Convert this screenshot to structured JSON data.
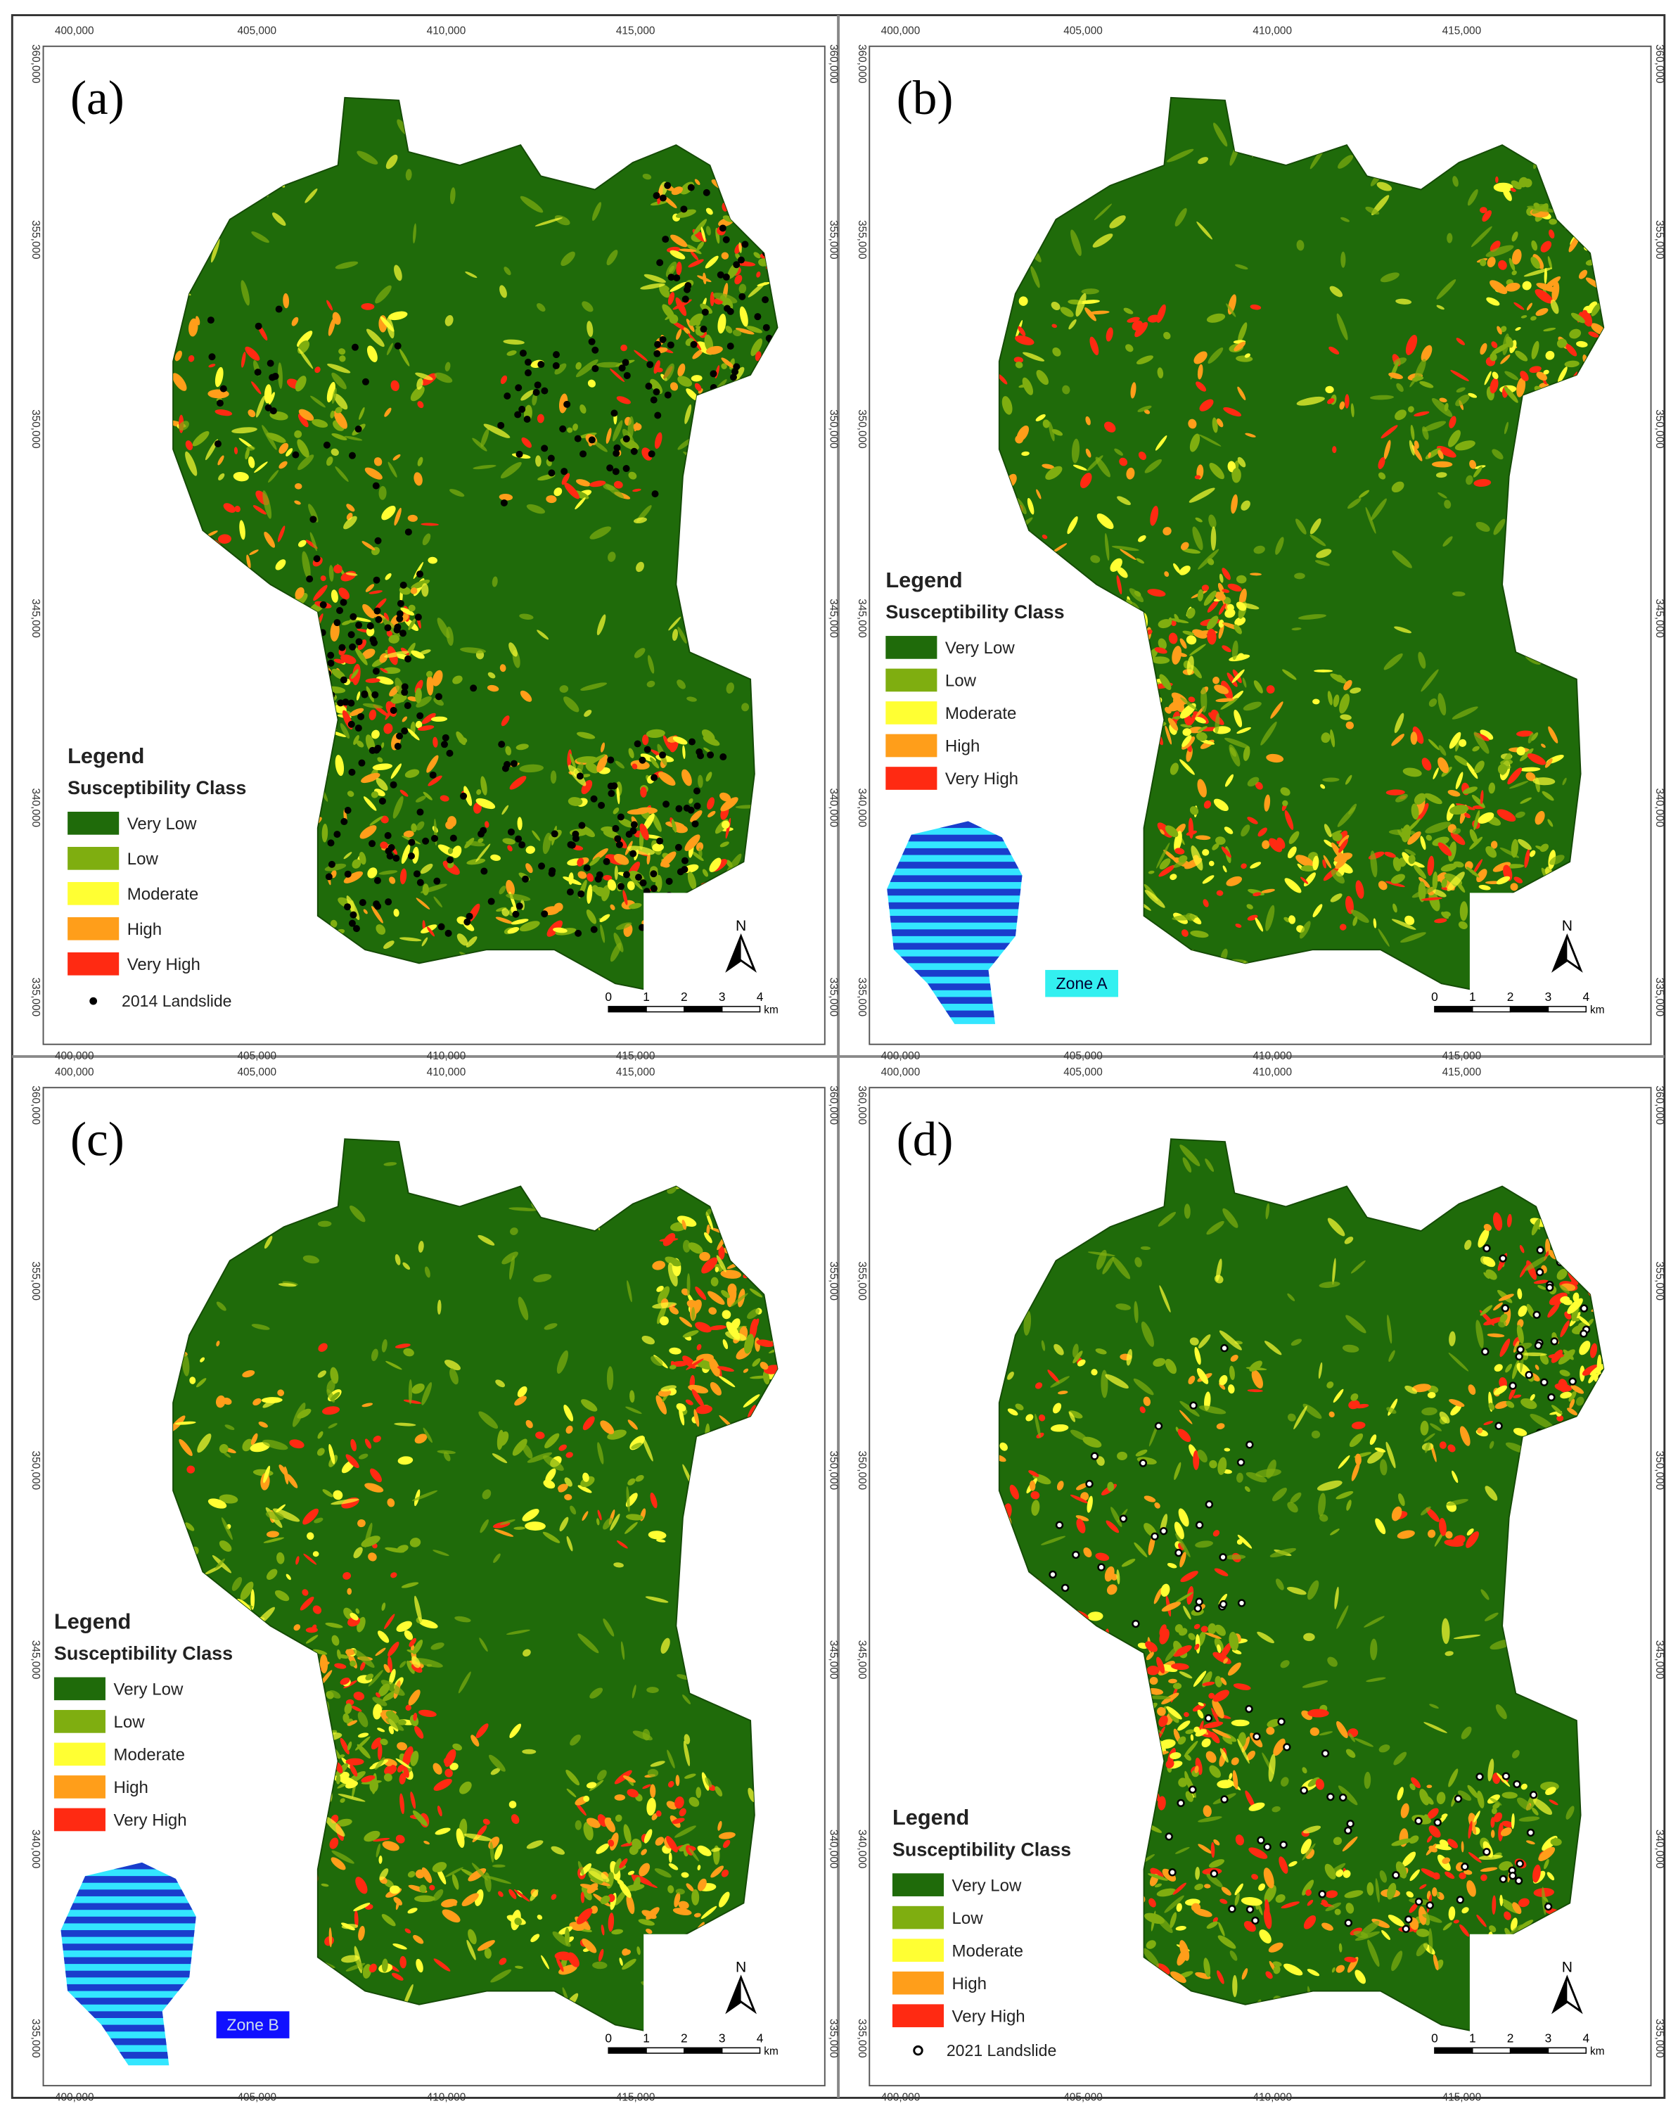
{
  "panels": [
    {
      "label": "(a)",
      "points_label": "2014 Landslide"
    },
    {
      "label": "(b)",
      "zone": "Zone A"
    },
    {
      "label": "(c)",
      "zone": "Zone B"
    },
    {
      "label": "(d)",
      "points_label": "2021 Landslide"
    }
  ],
  "legend": {
    "title": "Legend",
    "subtitle": "Susceptibility Class",
    "classes": [
      {
        "name": "Very Low",
        "color": "#1f6b0a"
      },
      {
        "name": "Low",
        "color": "#7fae10"
      },
      {
        "name": "Moderate",
        "color": "#ffff33"
      },
      {
        "name": "High",
        "color": "#ff9e1a"
      },
      {
        "name": "Very High",
        "color": "#ff2a12"
      }
    ]
  },
  "x_ticks": [
    "400,000",
    "405,000",
    "410,000",
    "415,000"
  ],
  "y_ticks": [
    "360,000",
    "355,000",
    "350,000",
    "345,000",
    "340,000",
    "335,000"
  ],
  "scale_bar": {
    "labels": [
      "0",
      "1",
      "2",
      "3",
      "4"
    ],
    "unit": "km"
  },
  "north": "N"
}
